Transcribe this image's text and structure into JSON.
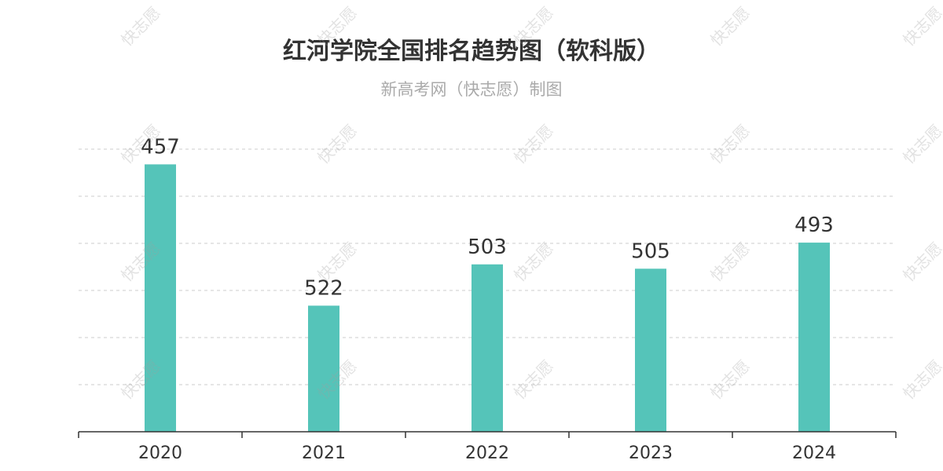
{
  "chart_data": {
    "type": "bar",
    "title": "红河学院全国排名趋势图（软科版）",
    "subtitle": "新高考网（快志愿）制图",
    "categories": [
      "2020",
      "2021",
      "2022",
      "2023",
      "2024"
    ],
    "values": [
      457,
      522,
      503,
      505,
      493
    ],
    "y_axis": "inverted rank (smaller rank = taller bar)",
    "ylim": [
      580,
      450
    ],
    "grid": true,
    "legend": "none",
    "bar_color": "#55c4b9"
  },
  "watermark": "快志愿"
}
